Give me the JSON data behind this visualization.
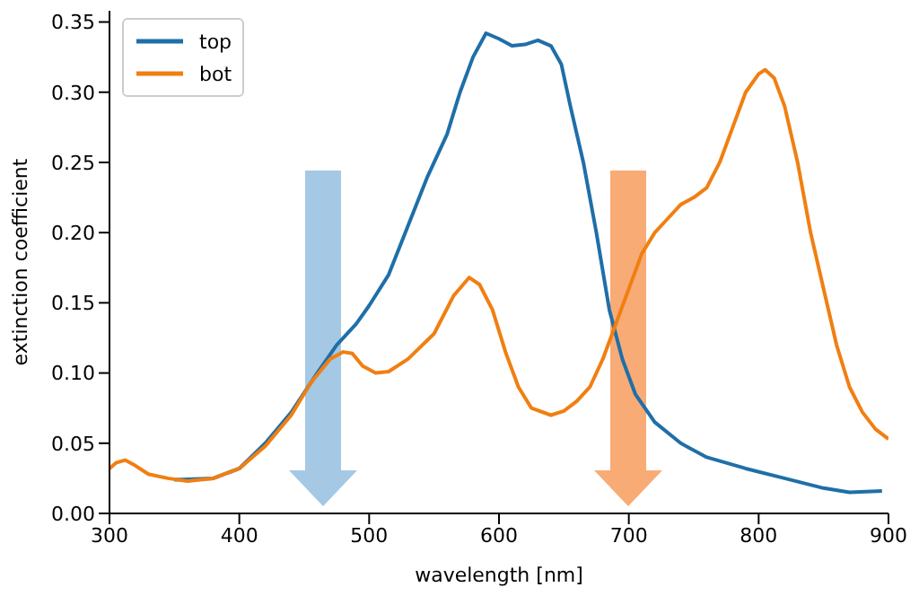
{
  "chart_data": {
    "type": "line",
    "xlabel": "wavelength [nm]",
    "ylabel": "extinction coefficient",
    "xlim": [
      300,
      900
    ],
    "ylim": [
      0,
      0.358
    ],
    "xticks": [
      300,
      400,
      500,
      600,
      700,
      800,
      900
    ],
    "yticks": [
      {
        "value": 0,
        "label": "0.00"
      },
      {
        "value": 0.05,
        "label": "0.05"
      },
      {
        "value": 0.1,
        "label": "0.10"
      },
      {
        "value": 0.15,
        "label": "0.15"
      },
      {
        "value": 0.2,
        "label": "0.20"
      },
      {
        "value": 0.25,
        "label": "0.25"
      },
      {
        "value": 0.3,
        "label": "0.30"
      },
      {
        "value": 0.35,
        "label": "0.35"
      }
    ],
    "grid": false,
    "legend": "top left",
    "marker": "none",
    "line_style": "solid",
    "series": [
      {
        "name": "top",
        "color": "#1f6fa8",
        "x": [
          350,
          380,
          400,
          420,
          440,
          460,
          475,
          490,
          500,
          515,
          530,
          545,
          560,
          570,
          580,
          590,
          600,
          610,
          620,
          630,
          640,
          648,
          655,
          665,
          675,
          685,
          695,
          705,
          720,
          740,
          760,
          790,
          820,
          850,
          870,
          895
        ],
        "values": [
          0.024,
          0.025,
          0.032,
          0.05,
          0.072,
          0.1,
          0.12,
          0.135,
          0.148,
          0.17,
          0.205,
          0.24,
          0.27,
          0.3,
          0.325,
          0.342,
          0.338,
          0.333,
          0.334,
          0.337,
          0.333,
          0.32,
          0.29,
          0.25,
          0.2,
          0.145,
          0.11,
          0.085,
          0.065,
          0.05,
          0.04,
          0.032,
          0.025,
          0.018,
          0.015,
          0.016
        ]
      },
      {
        "name": "bot",
        "color": "#f07f12",
        "x": [
          300,
          305,
          312,
          320,
          330,
          345,
          360,
          380,
          400,
          420,
          440,
          455,
          470,
          480,
          487,
          495,
          505,
          515,
          530,
          550,
          565,
          577,
          585,
          595,
          605,
          615,
          625,
          640,
          650,
          660,
          670,
          680,
          690,
          700,
          710,
          720,
          730,
          740,
          750,
          760,
          770,
          780,
          790,
          800,
          805,
          812,
          820,
          830,
          840,
          850,
          860,
          870,
          880,
          890,
          900
        ],
        "values": [
          0.032,
          0.036,
          0.038,
          0.034,
          0.028,
          0.025,
          0.023,
          0.025,
          0.032,
          0.048,
          0.07,
          0.093,
          0.11,
          0.115,
          0.114,
          0.105,
          0.1,
          0.101,
          0.11,
          0.128,
          0.155,
          0.168,
          0.163,
          0.145,
          0.115,
          0.09,
          0.075,
          0.07,
          0.073,
          0.08,
          0.09,
          0.11,
          0.135,
          0.16,
          0.185,
          0.2,
          0.21,
          0.22,
          0.225,
          0.232,
          0.25,
          0.275,
          0.3,
          0.313,
          0.316,
          0.31,
          0.29,
          0.25,
          0.2,
          0.16,
          0.12,
          0.09,
          0.072,
          0.06,
          0.053
        ]
      }
    ]
  }
}
